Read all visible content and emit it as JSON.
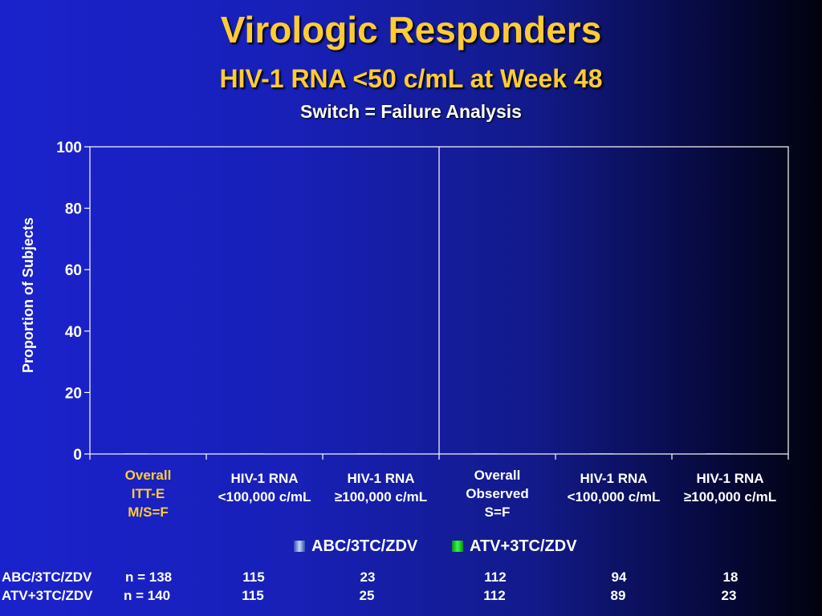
{
  "title": "Virologic Responders",
  "subtitle": "HIV-1 RNA <50 c/mL at Week 48",
  "subtitle2": "Switch = Failure Analysis",
  "colors": {
    "title": "#ffcc33",
    "highlight_label": "#ffcc33",
    "text": "#ffffff",
    "abc_series": "#c9d6f2",
    "atv_series": "#33ff44"
  },
  "chart_data": {
    "type": "bar",
    "title": "",
    "xlabel": "",
    "ylabel": "Proportion of Subjects",
    "ylim": [
      0,
      100
    ],
    "yticks": [
      0,
      20,
      40,
      60,
      80,
      100
    ],
    "grid": false,
    "legend_position": "bottom",
    "categories": [
      {
        "lines": [
          "Overall",
          "ITT-E",
          "M/S=F"
        ],
        "highlight": true
      },
      {
        "lines": [
          "HIV-1 RNA",
          "<100,000 c/mL"
        ],
        "highlight": false
      },
      {
        "lines": [
          "HIV-1 RNA",
          "≥100,000 c/mL"
        ],
        "highlight": false
      },
      {
        "lines": [
          "Overall",
          "Observed",
          "S=F"
        ],
        "highlight": false
      },
      {
        "lines": [
          "HIV-1 RNA",
          "<100,000 c/mL"
        ],
        "highlight": false
      },
      {
        "lines": [
          "HIV-1 RNA",
          "≥100,000 c/mL"
        ],
        "highlight": false
      }
    ],
    "series": [
      {
        "name": "ABC/3TC/ZDV",
        "values": [
          0,
          0,
          0,
          0,
          0,
          0
        ]
      },
      {
        "name": "ATV+3TC/ZDV",
        "values": [
          0,
          0,
          0,
          0,
          0,
          0
        ]
      }
    ],
    "divider_after_category": 3
  },
  "ntable": {
    "rows": [
      {
        "label": "ABC/3TC/ZDV",
        "n": "n = 138",
        "values": [
          "115",
          "23",
          "112",
          "94",
          "18"
        ]
      },
      {
        "label": "ATV+3TC/ZDV",
        "n": "n = 140",
        "values": [
          "115",
          "25",
          "112",
          "89",
          "23"
        ]
      }
    ]
  }
}
